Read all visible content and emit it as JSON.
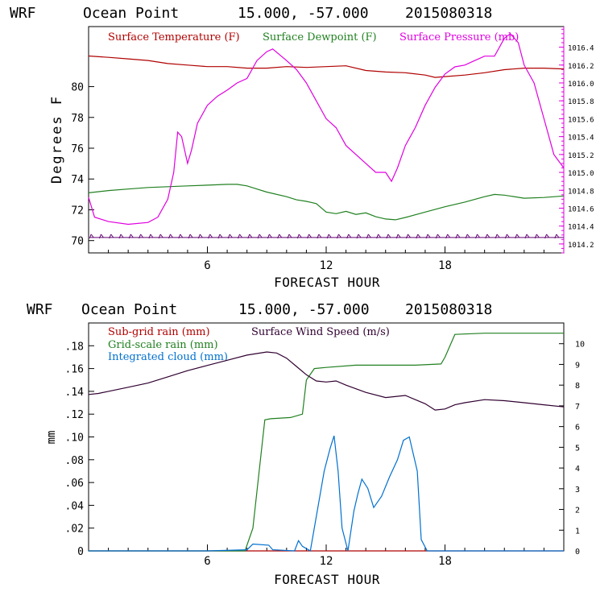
{
  "header_top": {
    "model": "WRF",
    "station": "Ocean Point",
    "coords": "15.000, -57.000",
    "run": "2015080318"
  },
  "header_bottom": {
    "model": "WRF",
    "station": "Ocean Point",
    "coords": "15.000, -57.000",
    "run": "2015080318"
  },
  "colors": {
    "temp": "#b00000",
    "dew": "#208020",
    "pres": "#e000e0",
    "wind_barb": "#600070",
    "subrain": "#b00000",
    "gridrain": "#208020",
    "cloud": "#0070d0",
    "wind": "#300030"
  },
  "chart_data": [
    {
      "type": "line",
      "title": "WRF  Ocean Point  15.000, -57.000  2015080318",
      "xlabel": "FORECAST HOUR",
      "ylabel": "Degrees F",
      "xlim": [
        0,
        24
      ],
      "ylim": [
        69.2,
        83.9
      ],
      "y2lim": [
        1014.1,
        1016.63
      ],
      "xticks": [
        "6",
        "12",
        "18"
      ],
      "xtick_values": [
        6,
        12,
        18
      ],
      "yticks": [
        "70",
        "72",
        "74",
        "76",
        "78",
        "80"
      ],
      "ytick_values": [
        70,
        72,
        74,
        76,
        78,
        80
      ],
      "y2ticks": [
        "1014.2",
        "1014.4",
        "1014.6",
        "1014.8",
        "1015.0",
        "1015.2",
        "1015.4",
        "1015.6",
        "1015.8",
        "1016.0",
        "1016.2",
        "1016.4"
      ],
      "y2tick_values": [
        1014.2,
        1014.4,
        1014.6,
        1014.8,
        1015.0,
        1015.2,
        1015.4,
        1015.6,
        1015.8,
        1016.0,
        1016.2,
        1016.4
      ],
      "legend": [
        "Surface Temperature (F)",
        "Surface Dewpoint (F)",
        "Surface Pressure (mb)"
      ],
      "series": [
        {
          "name": "Surface Temperature (F)",
          "axis": "left",
          "x": [
            0,
            1,
            2,
            3,
            4,
            5,
            6,
            7,
            8,
            9,
            10,
            11,
            12,
            13,
            14,
            15,
            16,
            17,
            17.5,
            18,
            19,
            20,
            21,
            22,
            23,
            24
          ],
          "values": [
            81.99,
            81.9,
            81.8,
            81.7,
            81.5,
            81.4,
            81.3,
            81.3,
            81.2,
            81.2,
            81.3,
            81.25,
            81.3,
            81.35,
            81.05,
            80.95,
            80.9,
            80.75,
            80.6,
            80.65,
            80.75,
            80.9,
            81.1,
            81.2,
            81.2,
            81.15
          ]
        },
        {
          "name": "Surface Dewpoint (F)",
          "axis": "left",
          "x": [
            0,
            1,
            2,
            3,
            4,
            5,
            6,
            7,
            7.5,
            8,
            8.5,
            9,
            10,
            10.5,
            11,
            11.5,
            12,
            12.5,
            13,
            13.5,
            14,
            14.5,
            15,
            15.5,
            16,
            17,
            18,
            19,
            20,
            20.5,
            21,
            22,
            23,
            24
          ],
          "values": [
            73.1,
            73.25,
            73.35,
            73.45,
            73.5,
            73.55,
            73.6,
            73.65,
            73.65,
            73.55,
            73.35,
            73.15,
            72.85,
            72.65,
            72.55,
            72.4,
            71.85,
            71.75,
            71.9,
            71.7,
            71.8,
            71.55,
            71.4,
            71.35,
            71.5,
            71.85,
            72.2,
            72.5,
            72.85,
            73.0,
            72.95,
            72.75,
            72.8,
            72.9
          ]
        },
        {
          "name": "Surface Pressure (mb)",
          "axis": "right",
          "x": [
            0,
            0.3,
            1,
            2,
            3,
            3.5,
            4,
            4.3,
            4.5,
            4.7,
            5,
            5.2,
            5.5,
            6,
            6.5,
            7,
            7.5,
            8,
            8.5,
            9,
            9.3,
            10,
            10.5,
            11,
            11.5,
            12,
            12.5,
            13,
            13.5,
            14,
            14.5,
            15,
            15.3,
            15.6,
            16,
            16.5,
            17,
            17.5,
            18,
            18.5,
            19,
            19.5,
            20,
            20.5,
            21,
            21.3,
            21.7,
            22,
            22.5,
            23,
            23.5,
            24
          ],
          "values": [
            1014.72,
            1014.5,
            1014.45,
            1014.42,
            1014.44,
            1014.5,
            1014.7,
            1015.0,
            1015.45,
            1015.4,
            1015.1,
            1015.25,
            1015.55,
            1015.75,
            1015.85,
            1015.92,
            1016.0,
            1016.05,
            1016.25,
            1016.35,
            1016.38,
            1016.25,
            1016.15,
            1016.0,
            1015.8,
            1015.6,
            1015.5,
            1015.3,
            1015.2,
            1015.1,
            1015.0,
            1015.0,
            1014.9,
            1015.05,
            1015.3,
            1015.5,
            1015.75,
            1015.95,
            1016.1,
            1016.18,
            1016.2,
            1016.25,
            1016.3,
            1016.3,
            1016.5,
            1016.55,
            1016.45,
            1016.2,
            1016.0,
            1015.6,
            1015.2,
            1015.05
          ]
        }
      ],
      "wind_barbs": {
        "y_value": 70.2,
        "x_start": 0.25,
        "x_end": 24,
        "x_step": 0.5
      }
    },
    {
      "type": "line",
      "title": "WRF  Ocean Point  15.000, -57.000  2015080318",
      "xlabel": "FORECAST HOUR",
      "ylabel": "mm",
      "xlim": [
        0,
        24
      ],
      "ylim": [
        0,
        0.2
      ],
      "y2lim": [
        0,
        11
      ],
      "xticks": [
        "6",
        "12",
        "18"
      ],
      "xtick_values": [
        6,
        12,
        18
      ],
      "yticks": [
        "0",
        ".02",
        ".04",
        ".06",
        ".08",
        ".10",
        ".12",
        ".14",
        ".16",
        ".18"
      ],
      "ytick_values": [
        0,
        0.02,
        0.04,
        0.06,
        0.08,
        0.1,
        0.12,
        0.14,
        0.16,
        0.18
      ],
      "y2ticks": [
        "0",
        "1",
        "2",
        "3",
        "4",
        "5",
        "6",
        "7",
        "8",
        "9",
        "10"
      ],
      "y2tick_values": [
        0,
        1,
        2,
        3,
        4,
        5,
        6,
        7,
        8,
        9,
        10
      ],
      "legend": [
        "Sub-grid rain (mm)",
        "Grid-scale rain (mm)",
        "Integrated cloud (mm)",
        "Surface Wind Speed (m/s)"
      ],
      "series": [
        {
          "name": "Sub-grid rain (mm)",
          "axis": "left",
          "x": [
            0,
            24
          ],
          "values": [
            0,
            0
          ]
        },
        {
          "name": "Grid-scale rain (mm)",
          "axis": "left",
          "x": [
            0,
            7.9,
            8.3,
            8.9,
            9.2,
            10.2,
            10.8,
            11.0,
            11.4,
            12.0,
            13.5,
            16.5,
            17.8,
            18.0,
            18.5,
            20.0,
            24
          ],
          "values": [
            0,
            0,
            0.02,
            0.115,
            0.116,
            0.117,
            0.12,
            0.15,
            0.16,
            0.161,
            0.163,
            0.163,
            0.164,
            0.17,
            0.19,
            0.191,
            0.191
          ]
        },
        {
          "name": "Integrated cloud (mm)",
          "axis": "left",
          "x": [
            0,
            6.0,
            8.0,
            8.3,
            9.1,
            9.3,
            10.4,
            10.6,
            10.8,
            11.2,
            11.5,
            11.9,
            12.2,
            12.4,
            12.6,
            12.8,
            13.1,
            13.4,
            13.6,
            13.8,
            14.1,
            14.4,
            14.8,
            15.2,
            15.6,
            15.9,
            16.2,
            16.6,
            16.8,
            17.1,
            24
          ],
          "values": [
            0,
            0,
            0.001,
            0.006,
            0.005,
            0.001,
            0.0,
            0.009,
            0.004,
            0.0,
            0.03,
            0.07,
            0.09,
            0.101,
            0.07,
            0.02,
            0.0,
            0.035,
            0.05,
            0.063,
            0.055,
            0.038,
            0.048,
            0.065,
            0.08,
            0.097,
            0.1,
            0.07,
            0.01,
            0.0,
            0
          ]
        },
        {
          "name": "Surface Wind Speed (m/s)",
          "axis": "right",
          "x": [
            0,
            0.5,
            1,
            2,
            3,
            4,
            5,
            6,
            7,
            8,
            9,
            9.5,
            10,
            10.5,
            11,
            11.5,
            12,
            12.5,
            13,
            14,
            15,
            16,
            17,
            17.5,
            18,
            18.5,
            19,
            20,
            21,
            22,
            23,
            24
          ],
          "values": [
            7.55,
            7.6,
            7.7,
            7.9,
            8.1,
            8.4,
            8.7,
            8.95,
            9.2,
            9.45,
            9.6,
            9.55,
            9.3,
            8.9,
            8.5,
            8.2,
            8.15,
            8.2,
            8.0,
            7.65,
            7.4,
            7.5,
            7.1,
            6.8,
            6.85,
            7.05,
            7.15,
            7.3,
            7.25,
            7.15,
            7.05,
            6.95
          ]
        }
      ]
    }
  ]
}
